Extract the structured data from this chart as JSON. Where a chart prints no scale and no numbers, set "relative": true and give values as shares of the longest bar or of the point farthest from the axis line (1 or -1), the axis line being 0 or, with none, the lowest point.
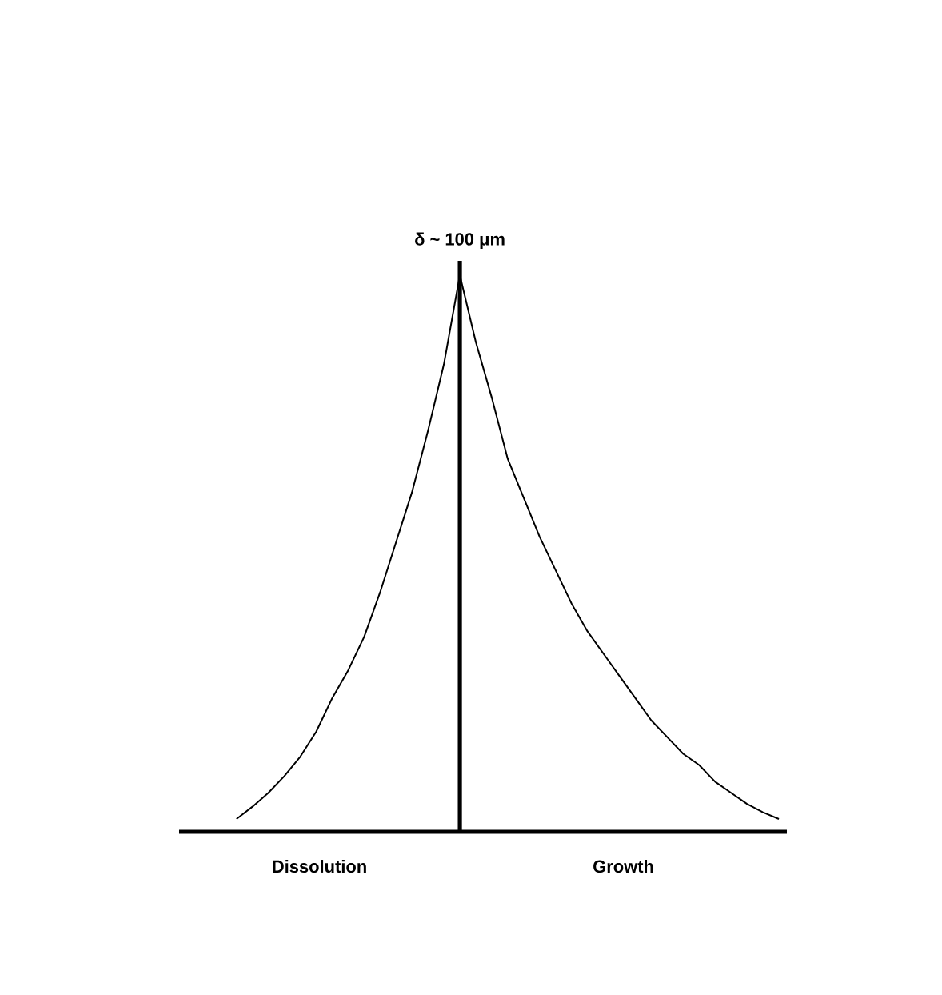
{
  "chart_data": {
    "type": "line",
    "relative": true,
    "ylabel": "δ ~ 100 μm",
    "color": "#000000",
    "categories": [
      null,
      null,
      null,
      null,
      null,
      null,
      null,
      null,
      null,
      null,
      null,
      null,
      null,
      null,
      null,
      null,
      null,
      null,
      null,
      null,
      null,
      null,
      null,
      null,
      null,
      null,
      null,
      null,
      null,
      null,
      null,
      null,
      null,
      null,
      null
    ],
    "values": [
      0.023,
      0.045,
      0.07,
      0.1,
      0.135,
      0.18,
      0.24,
      0.29,
      0.35,
      0.43,
      0.52,
      0.61,
      0.72,
      0.84,
      1,
      0.88,
      0.78,
      0.67,
      0.6,
      0.53,
      0.47,
      0.41,
      0.36,
      0.32,
      0.28,
      0.24,
      0.2,
      0.17,
      0.14,
      0.12,
      0.09,
      0.07,
      0.05,
      0.035,
      0.023
    ],
    "annotations": [
      "Dissolution",
      "Growth"
    ]
  }
}
